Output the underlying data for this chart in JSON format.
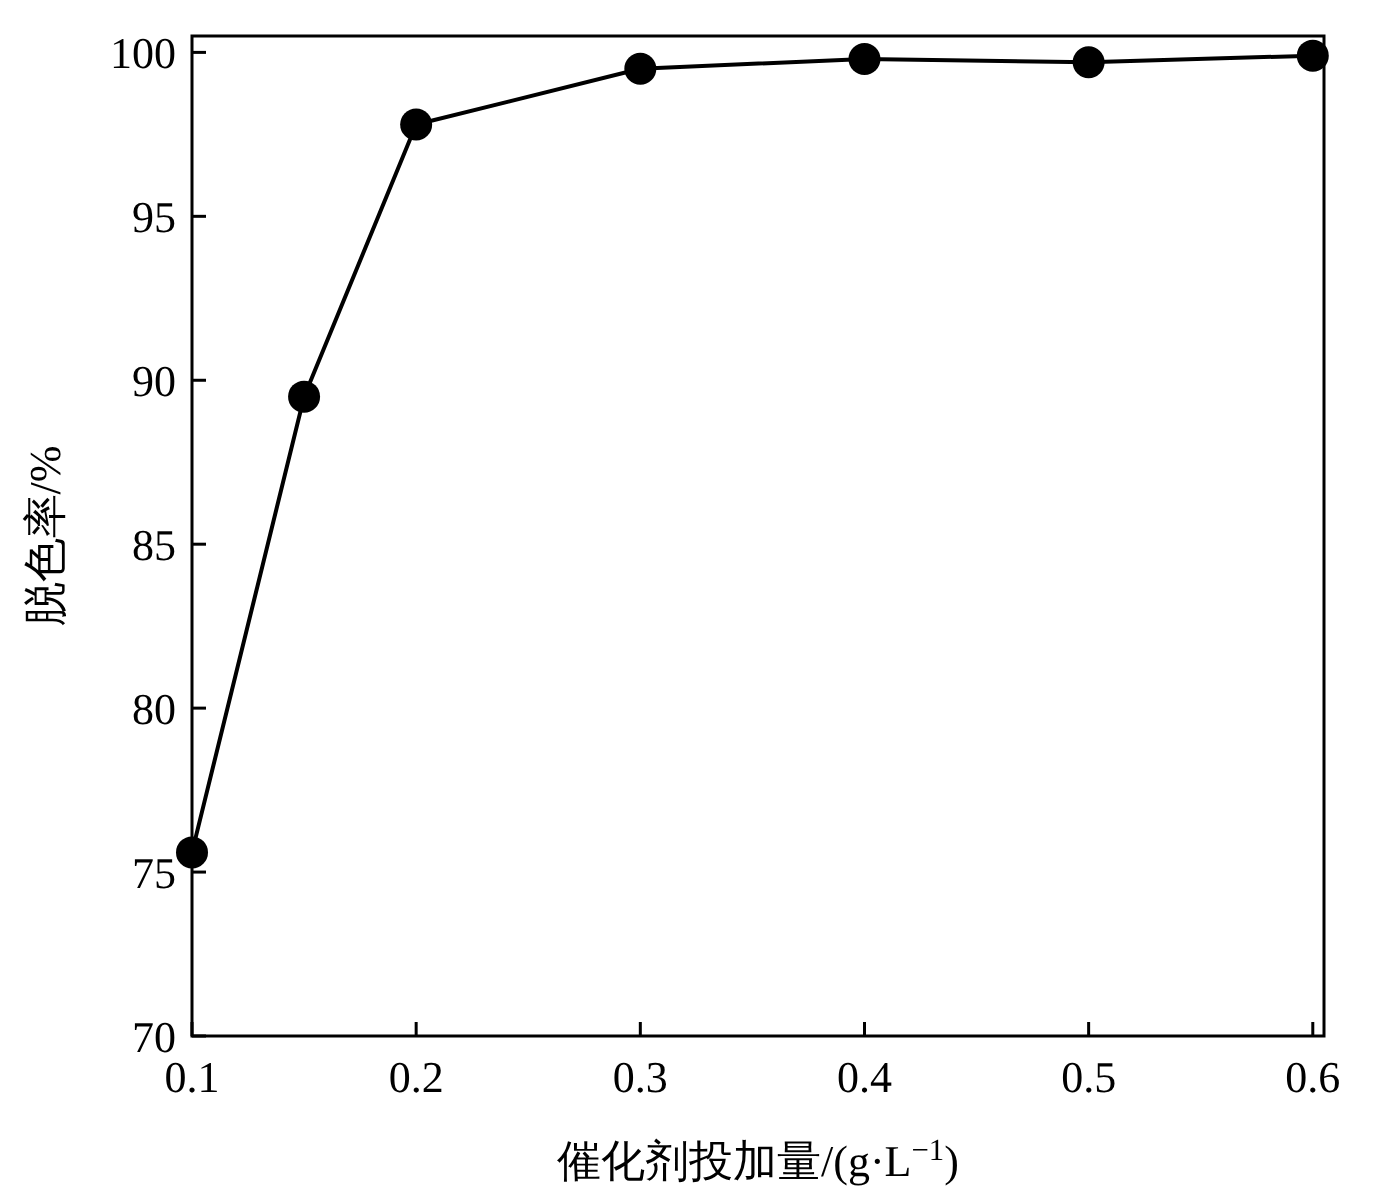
{
  "chart_data": {
    "type": "line",
    "xlabel": "催化剂投加量/(g·L$^{−1}$)",
    "ylabel": "脱色率/%",
    "x": [
      0.1,
      0.15,
      0.2,
      0.3,
      0.4,
      0.5,
      0.6
    ],
    "series": [
      {
        "color": "#000000",
        "values": [
          75.6,
          89.5,
          97.8,
          99.5,
          99.8,
          99.7,
          99.9
        ]
      }
    ],
    "xlim": [
      0.1,
      0.605
    ],
    "xticks": [
      0.1,
      0.2,
      0.3,
      0.4,
      0.5,
      0.6
    ],
    "ylim": [
      70,
      100.5
    ],
    "yticks": [
      70,
      75,
      80,
      85,
      90,
      95,
      100
    ],
    "marker": "circle",
    "line_style": "solid",
    "grid": false
  }
}
